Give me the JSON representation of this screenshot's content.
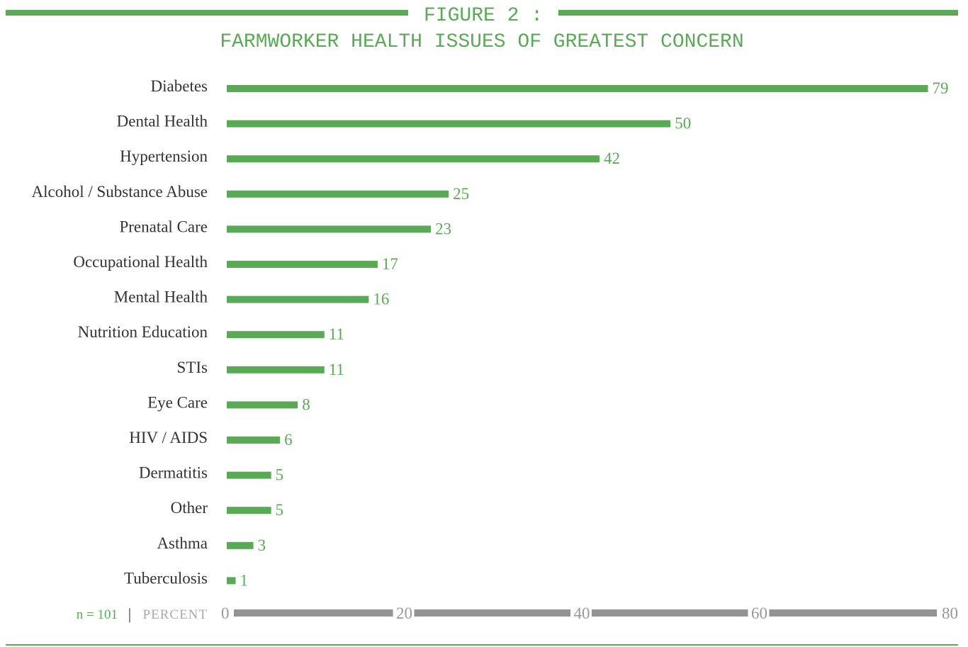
{
  "figure": {
    "label": "FIGURE 2 :",
    "title": "FARMWORKER HEALTH ISSUES OF GREATEST CONCERN"
  },
  "footer": {
    "sample": "n = 101",
    "separator": "|",
    "unit": "PERCENT"
  },
  "colors": {
    "bar": "#5aaa55",
    "axis": "#939393",
    "label": "#333333",
    "tick": "#999999"
  },
  "chart_data": {
    "type": "bar",
    "orientation": "horizontal",
    "title": "FARMWORKER HEALTH ISSUES OF GREATEST CONCERN",
    "xlabel": "PERCENT",
    "ylabel": "",
    "xlim": [
      0,
      80
    ],
    "xticks": [
      "0",
      "20",
      "40",
      "60",
      "80"
    ],
    "grid": false,
    "categories": [
      "Diabetes",
      "Dental Health",
      "Hypertension",
      "Alcohol / Substance Abuse",
      "Prenatal Care",
      "Occupational Health",
      "Mental Health",
      "Nutrition Education",
      "STIs",
      "Eye Care",
      "HIV / AIDS",
      "Dermatitis",
      "Other",
      "Asthma",
      "Tuberculosis"
    ],
    "values": [
      79,
      50,
      42,
      25,
      23,
      17,
      16,
      11,
      11,
      8,
      6,
      5,
      5,
      3,
      1
    ]
  }
}
